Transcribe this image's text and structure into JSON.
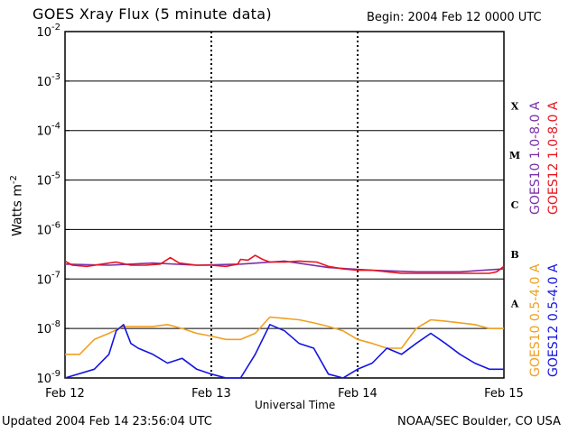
{
  "header": {
    "title": "GOES Xray Flux (5 minute data)",
    "begin": "Begin:  2004 Feb 12 0000 UTC"
  },
  "footer": {
    "updated": "Updated 2004 Feb 14 23:56:04 UTC",
    "credit": "NOAA/SEC Boulder, CO USA"
  },
  "chart_data": {
    "type": "line",
    "title": "GOES Xray Flux (5 minute data)",
    "xlabel": "Universal Time",
    "ylabel": "Watts m",
    "ylabel_exponent": "-2",
    "x_tick_labels": [
      "Feb 12",
      "Feb 13",
      "Feb 14",
      "Feb 15"
    ],
    "x_unit": "days since 2004 Feb 12 0000 UTC",
    "xlim": [
      0,
      3
    ],
    "y_scale": "log",
    "ylim": [
      1e-09,
      0.01
    ],
    "y_ticks": [
      {
        "base": "10",
        "exp": "-2"
      },
      {
        "base": "10",
        "exp": "-3"
      },
      {
        "base": "10",
        "exp": "-4"
      },
      {
        "base": "10",
        "exp": "-5"
      },
      {
        "base": "10",
        "exp": "-6"
      },
      {
        "base": "10",
        "exp": "-7"
      },
      {
        "base": "10",
        "exp": "-8"
      },
      {
        "base": "10",
        "exp": "-9"
      }
    ],
    "flare_classes": [
      "X",
      "M",
      "C",
      "B",
      "A"
    ],
    "grid": "horizontal at decades",
    "legend_placement": "right, vertical",
    "series": [
      {
        "name": "GOES10 1.0-8.0 A",
        "color": "#7b2fa8",
        "points": [
          [
            0.0,
            2e-07
          ],
          [
            0.3,
            1.9e-07
          ],
          [
            0.6,
            2.1e-07
          ],
          [
            0.9,
            1.9e-07
          ],
          [
            1.2,
            2e-07
          ],
          [
            1.5,
            2.3e-07
          ],
          [
            1.8,
            1.7e-07
          ],
          [
            2.1,
            1.5e-07
          ],
          [
            2.4,
            1.4e-07
          ],
          [
            2.7,
            1.4e-07
          ],
          [
            3.0,
            1.6e-07
          ]
        ]
      },
      {
        "name": "GOES12 1.0-8.0 A",
        "color": "#e8141e",
        "points": [
          [
            0.0,
            2.3e-07
          ],
          [
            0.05,
            1.9e-07
          ],
          [
            0.15,
            1.8e-07
          ],
          [
            0.25,
            2e-07
          ],
          [
            0.35,
            2.2e-07
          ],
          [
            0.45,
            1.9e-07
          ],
          [
            0.55,
            1.9e-07
          ],
          [
            0.65,
            2e-07
          ],
          [
            0.72,
            2.7e-07
          ],
          [
            0.78,
            2.1e-07
          ],
          [
            0.9,
            1.9e-07
          ],
          [
            1.0,
            1.9e-07
          ],
          [
            1.1,
            1.8e-07
          ],
          [
            1.18,
            2e-07
          ],
          [
            1.2,
            2.5e-07
          ],
          [
            1.25,
            2.4e-07
          ],
          [
            1.3,
            3e-07
          ],
          [
            1.35,
            2.5e-07
          ],
          [
            1.4,
            2.2e-07
          ],
          [
            1.5,
            2.2e-07
          ],
          [
            1.6,
            2.3e-07
          ],
          [
            1.72,
            2.2e-07
          ],
          [
            1.8,
            1.8e-07
          ],
          [
            1.9,
            1.6e-07
          ],
          [
            2.0,
            1.5e-07
          ],
          [
            2.1,
            1.5e-07
          ],
          [
            2.2,
            1.4e-07
          ],
          [
            2.3,
            1.3e-07
          ],
          [
            2.4,
            1.3e-07
          ],
          [
            2.5,
            1.3e-07
          ],
          [
            2.6,
            1.3e-07
          ],
          [
            2.7,
            1.3e-07
          ],
          [
            2.8,
            1.3e-07
          ],
          [
            2.9,
            1.3e-07
          ],
          [
            2.95,
            1.4e-07
          ],
          [
            3.0,
            1.8e-07
          ]
        ]
      },
      {
        "name": "GOES10 0.5-4.0 A",
        "color": "#f0a020",
        "points": [
          [
            0.0,
            3e-09
          ],
          [
            0.1,
            3e-09
          ],
          [
            0.2,
            6e-09
          ],
          [
            0.3,
            8e-09
          ],
          [
            0.4,
            1.1e-08
          ],
          [
            0.5,
            1.1e-08
          ],
          [
            0.6,
            1.1e-08
          ],
          [
            0.7,
            1.2e-08
          ],
          [
            0.8,
            1e-08
          ],
          [
            0.9,
            8e-09
          ],
          [
            1.0,
            7e-09
          ],
          [
            1.1,
            6e-09
          ],
          [
            1.2,
            6e-09
          ],
          [
            1.3,
            8e-09
          ],
          [
            1.4,
            1.7e-08
          ],
          [
            1.5,
            1.6e-08
          ],
          [
            1.6,
            1.5e-08
          ],
          [
            1.7,
            1.3e-08
          ],
          [
            1.8,
            1.1e-08
          ],
          [
            1.9,
            9e-09
          ],
          [
            2.0,
            6e-09
          ],
          [
            2.1,
            5e-09
          ],
          [
            2.2,
            4e-09
          ],
          [
            2.3,
            4e-09
          ],
          [
            2.4,
            1e-08
          ],
          [
            2.5,
            1.5e-08
          ],
          [
            2.6,
            1.4e-08
          ],
          [
            2.7,
            1.3e-08
          ],
          [
            2.8,
            1.2e-08
          ],
          [
            2.9,
            1e-08
          ],
          [
            3.0,
            1e-08
          ]
        ]
      },
      {
        "name": "GOES12 0.5-4.0 A",
        "color": "#1414e0",
        "points": [
          [
            0.0,
            1e-09
          ],
          [
            0.2,
            1.5e-09
          ],
          [
            0.3,
            3e-09
          ],
          [
            0.35,
            9e-09
          ],
          [
            0.4,
            1.2e-08
          ],
          [
            0.45,
            5e-09
          ],
          [
            0.5,
            4e-09
          ],
          [
            0.6,
            3e-09
          ],
          [
            0.7,
            2e-09
          ],
          [
            0.8,
            2.5e-09
          ],
          [
            0.9,
            1.5e-09
          ],
          [
            1.0,
            1.2e-09
          ],
          [
            1.1,
            1e-09
          ],
          [
            1.2,
            1e-09
          ],
          [
            1.3,
            3e-09
          ],
          [
            1.4,
            1.2e-08
          ],
          [
            1.5,
            9e-09
          ],
          [
            1.6,
            5e-09
          ],
          [
            1.7,
            4e-09
          ],
          [
            1.8,
            1.2e-09
          ],
          [
            1.9,
            1e-09
          ],
          [
            2.0,
            1.5e-09
          ],
          [
            2.1,
            2e-09
          ],
          [
            2.2,
            4e-09
          ],
          [
            2.3,
            3e-09
          ],
          [
            2.4,
            5e-09
          ],
          [
            2.5,
            8e-09
          ],
          [
            2.6,
            5e-09
          ],
          [
            2.7,
            3e-09
          ],
          [
            2.8,
            2e-09
          ],
          [
            2.9,
            1.5e-09
          ],
          [
            3.0,
            1.5e-09
          ]
        ]
      }
    ]
  }
}
